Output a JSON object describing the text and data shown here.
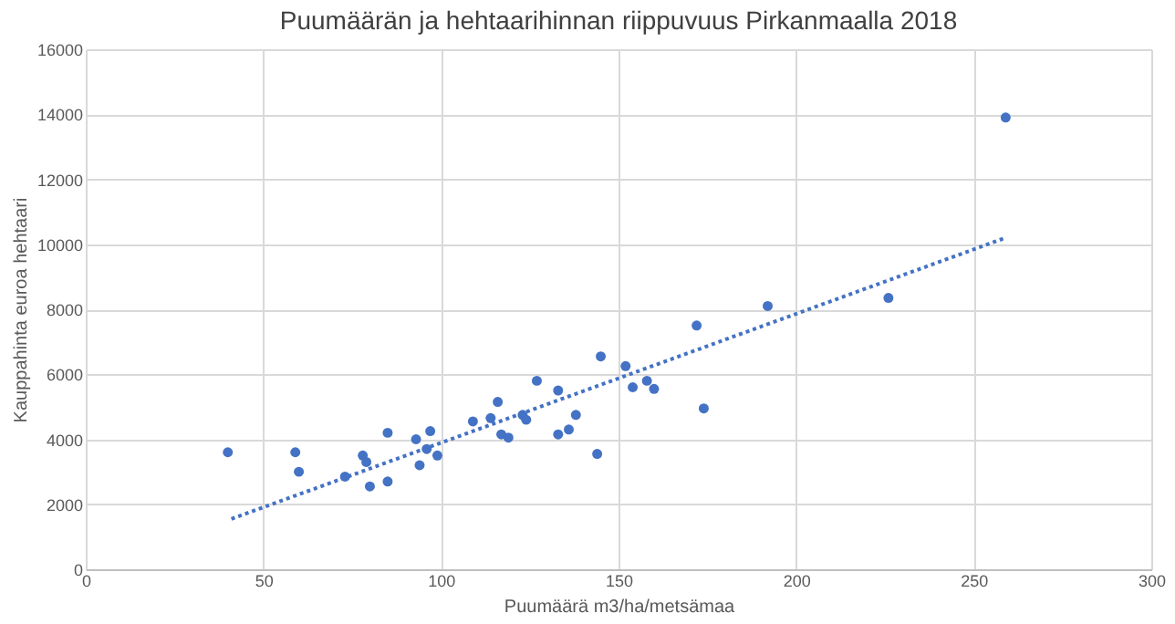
{
  "chart_data": {
    "type": "scatter",
    "title": "Puumäärän ja hehtaarihinnan riippuvuus Pirkanmaalla 2018",
    "xlabel": "Puumäärä m3/ha/metsämaa",
    "ylabel": "Kauppahinta euroa hehtaari",
    "xlim": [
      0,
      300
    ],
    "xticks": [
      0,
      50,
      100,
      150,
      200,
      250,
      300
    ],
    "ylim": [
      0,
      16000
    ],
    "yticks": [
      0,
      2000,
      4000,
      6000,
      8000,
      10000,
      12000,
      14000,
      16000
    ],
    "grid": true,
    "marker": "circle",
    "series": [
      {
        "color": "#4472c4",
        "x": [
          40,
          59,
          60,
          73,
          78,
          79,
          80,
          85,
          85,
          93,
          97,
          94,
          96,
          99,
          109,
          114,
          116,
          117,
          119,
          123,
          124,
          127,
          133,
          133,
          136,
          138,
          144,
          145,
          152,
          154,
          158,
          160,
          172,
          174,
          192,
          226,
          259
        ],
        "values": [
          3600,
          3600,
          3000,
          2850,
          3500,
          3300,
          2550,
          4200,
          2700,
          4000,
          4250,
          3200,
          3700,
          3500,
          4550,
          4650,
          5150,
          4150,
          4050,
          4750,
          4600,
          5800,
          5500,
          4150,
          4300,
          4750,
          3550,
          6550,
          6250,
          5600,
          5800,
          5550,
          7500,
          4950,
          8100,
          8350,
          13900
        ]
      },
      {
        "type": "line",
        "color": "#4472c4",
        "line_style": "dotted",
        "marker": "none",
        "x": [
          41,
          259
        ],
        "values": [
          1550,
          10200
        ]
      }
    ]
  }
}
